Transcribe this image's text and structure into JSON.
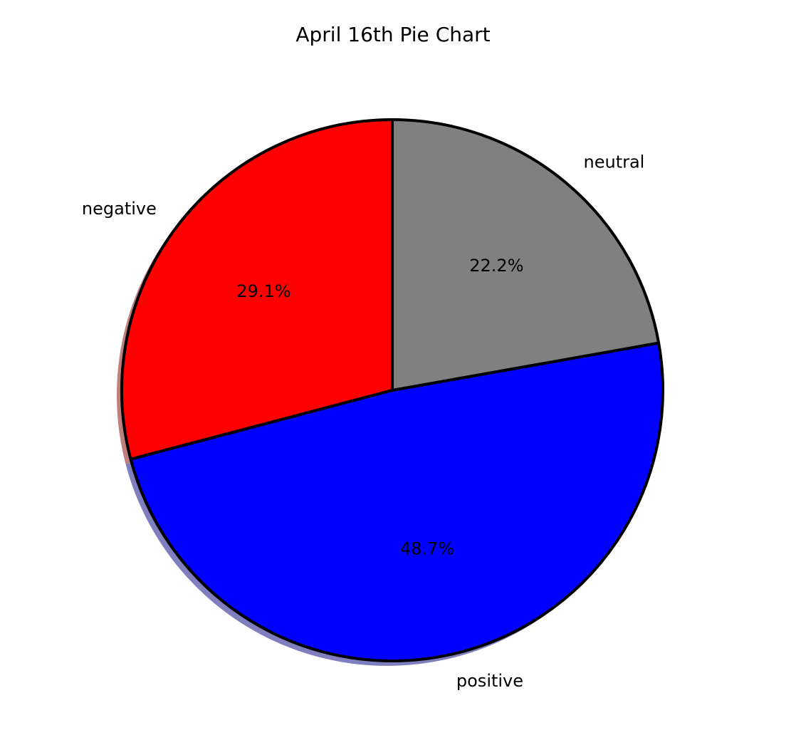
{
  "chart_data": {
    "type": "pie",
    "title": "April 16th Pie Chart",
    "start_angle_deg": 90,
    "direction": "counterclockwise",
    "shadow": true,
    "slices": [
      {
        "label": "negative",
        "value": 29.1,
        "pct_label": "29.1%",
        "color": "#ff0000"
      },
      {
        "label": "positive",
        "value": 48.7,
        "pct_label": "48.7%",
        "color": "#0000ff"
      },
      {
        "label": "neutral",
        "value": 22.2,
        "pct_label": "22.2%",
        "color": "#808080"
      }
    ],
    "edge_color": "#000000"
  }
}
